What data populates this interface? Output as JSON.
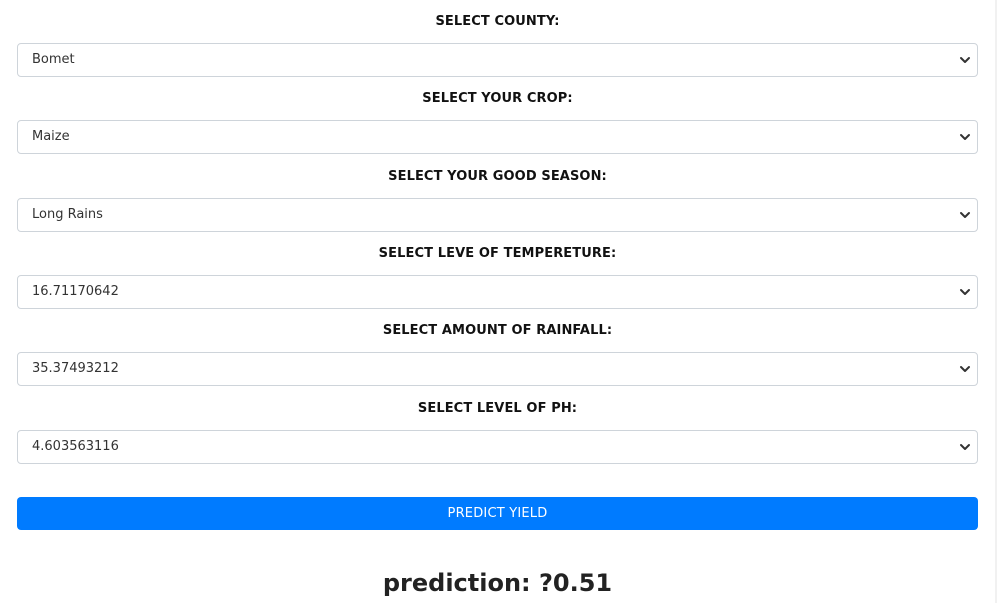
{
  "form": {
    "fields": [
      {
        "label": "SELECT COUNTY:",
        "value": "Bomet"
      },
      {
        "label": "SELECT YOUR CROP:",
        "value": "Maize"
      },
      {
        "label": "SELECT YOUR GOOD SEASON:",
        "value": "Long Rains"
      },
      {
        "label": "SELECT LEVE OF TEMPERETURE:",
        "value": "16.71170642"
      },
      {
        "label": "SELECT AMOUNT OF RAINFALL:",
        "value": "35.37493212"
      },
      {
        "label": "SELECT LEVEL OF PH:",
        "value": "4.603563116"
      }
    ],
    "submit_label": "PREDICT YIELD"
  },
  "result": {
    "text": "prediction: ?0.51"
  },
  "colors": {
    "button_bg": "#007bff",
    "button_text": "#ffffff",
    "select_border": "#ced4da"
  },
  "icons": {
    "select_arrow": "chevron-down-icon"
  }
}
